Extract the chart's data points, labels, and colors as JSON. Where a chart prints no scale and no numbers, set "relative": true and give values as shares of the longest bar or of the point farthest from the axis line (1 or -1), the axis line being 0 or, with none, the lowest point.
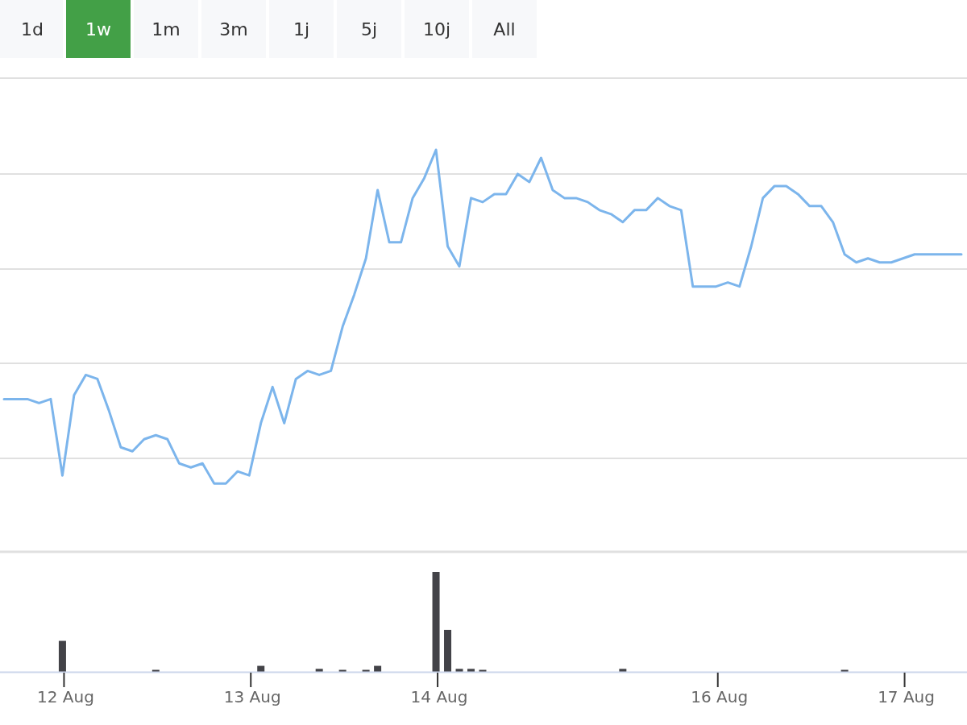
{
  "chart_data": [
    {
      "type": "line",
      "relative": true,
      "grid": true,
      "tick_labels": false,
      "color": "#7cb5ec",
      "annotations": [
        "1d",
        "1w",
        "1m",
        "3m",
        "1j",
        "5j",
        "10j",
        "All"
      ],
      "categories": [
        null,
        null,
        null,
        null,
        null,
        null,
        null,
        null,
        null,
        null,
        null,
        null,
        null,
        null,
        null,
        null,
        null,
        null,
        null,
        null,
        null,
        null,
        null,
        null,
        null,
        null,
        null,
        null,
        null,
        null,
        null,
        null,
        null,
        null,
        null,
        null,
        null,
        null,
        null,
        null,
        null,
        null,
        null,
        null,
        null,
        null,
        null,
        null,
        null,
        null,
        null,
        null,
        null,
        null,
        null,
        null,
        null,
        null,
        null,
        null,
        null,
        null,
        null,
        null,
        null,
        null,
        null,
        null,
        null,
        null,
        null,
        null,
        null,
        null,
        null,
        null,
        null,
        null,
        null,
        null,
        null,
        null,
        null
      ],
      "values": [
        0.38,
        0.38,
        0.38,
        0.37,
        0.38,
        0.19,
        0.39,
        0.44,
        0.43,
        0.35,
        0.26,
        0.25,
        0.28,
        0.29,
        0.28,
        0.22,
        0.21,
        0.22,
        0.17,
        0.17,
        0.2,
        0.19,
        0.32,
        0.41,
        0.32,
        0.43,
        0.45,
        0.44,
        0.45,
        0.56,
        0.64,
        0.73,
        0.9,
        0.77,
        0.77,
        0.88,
        0.93,
        1,
        0.76,
        0.71,
        0.88,
        0.87,
        0.89,
        0.89,
        0.94,
        0.92,
        0.98,
        0.9,
        0.88,
        0.88,
        0.87,
        0.85,
        0.84,
        0.82,
        0.85,
        0.85,
        0.88,
        0.86,
        0.85,
        0.66,
        0.66,
        0.66,
        0.67,
        0.66,
        0.76,
        0.88,
        0.91,
        0.91,
        0.89,
        0.86,
        0.86,
        0.82,
        0.74,
        0.72,
        0.73,
        0.72,
        0.72,
        0.73,
        0.74,
        0.74,
        0.74,
        0.74,
        0.74
      ]
    },
    {
      "type": "bar",
      "relative": true,
      "color": "#434348",
      "tick_labels": "x",
      "categories": [
        null,
        null,
        null,
        null,
        null,
        "12 Aug",
        null,
        null,
        null,
        null,
        null,
        null,
        null,
        null,
        null,
        null,
        null,
        null,
        null,
        null,
        null,
        "13 Aug",
        null,
        null,
        null,
        null,
        null,
        null,
        null,
        null,
        null,
        null,
        null,
        null,
        null,
        null,
        null,
        "14 Aug",
        null,
        null,
        null,
        null,
        null,
        null,
        null,
        null,
        null,
        null,
        null,
        null,
        null,
        null,
        null,
        null,
        null,
        null,
        null,
        null,
        null,
        null,
        null,
        "16 Aug",
        null,
        null,
        null,
        null,
        null,
        null,
        null,
        null,
        null,
        null,
        null,
        null,
        null,
        null,
        null,
        "17 Aug",
        null,
        null,
        null,
        null,
        null
      ],
      "values": [
        0,
        0,
        0,
        0,
        0,
        0.31,
        0,
        0,
        0,
        0,
        0,
        0,
        0,
        0.02,
        0,
        0,
        0,
        0,
        0,
        0,
        0,
        0,
        0.06,
        0,
        0,
        0,
        0,
        0.03,
        0,
        0.02,
        0,
        0.02,
        0.06,
        0,
        0,
        0,
        0,
        1,
        0.42,
        0.03,
        0.03,
        0.02,
        0,
        0,
        0,
        0,
        0,
        0,
        0,
        0,
        0,
        0,
        0,
        0.03,
        0,
        0,
        0,
        0,
        0,
        0,
        0,
        0,
        0,
        0,
        0,
        0,
        0,
        0,
        0,
        0,
        0,
        0,
        0.02,
        0,
        0,
        0,
        0,
        0,
        0,
        0,
        0,
        0,
        0
      ]
    }
  ]
}
